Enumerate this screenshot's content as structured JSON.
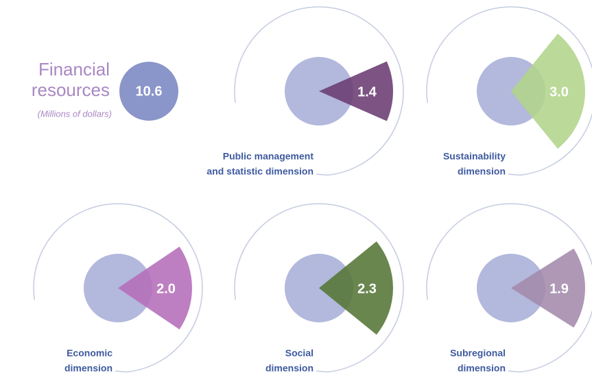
{
  "chart_data": {
    "type": "radial-sector",
    "title": [
      "Financial",
      "resources"
    ],
    "subtitle": "(Millions of dollars)",
    "total": 10.6,
    "total_color": "#8a95c9",
    "circle_color": "#b3b8dd",
    "categories": [
      [
        "Public management",
        "and statistic dimension"
      ],
      [
        "Sustainability",
        "dimension"
      ],
      [
        "Economic",
        "dimension"
      ],
      [
        "Social",
        "dimension"
      ],
      [
        "Subregional",
        "dimension"
      ]
    ],
    "values": [
      1.4,
      3,
      2,
      2.3,
      1.9
    ],
    "value_labels": [
      "1.4",
      "3.0",
      "2.0",
      "2.3",
      "1.9"
    ],
    "colors": [
      "#6a3b72",
      "#b2d48a",
      "#b46dba",
      "#547535",
      "#a38aab"
    ]
  }
}
